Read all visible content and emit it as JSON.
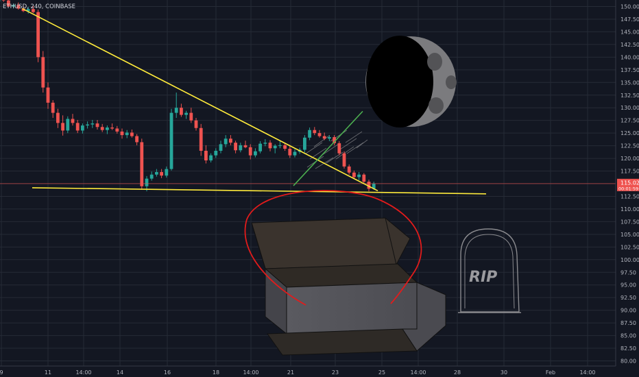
{
  "chart_data": {
    "type": "candlestick",
    "title": "ETHUSD, 240, COINBASE",
    "y_ticks": [
      150.0,
      147.5,
      145.0,
      142.5,
      140.0,
      137.5,
      135.0,
      132.5,
      130.0,
      127.5,
      125.0,
      122.5,
      120.0,
      117.5,
      115.0,
      112.5,
      110.0,
      107.5,
      105.0,
      102.5,
      100.0,
      97.5,
      95.0,
      92.5,
      90.0,
      87.5,
      85.0,
      82.5,
      80.0
    ],
    "ylim": [
      79.0,
      151.0
    ],
    "x_ticks": [
      "9",
      "11",
      "14:00",
      "14",
      "16",
      "18",
      "14:00",
      "21",
      "23",
      "25",
      "14:00",
      "28",
      "30",
      "Feb",
      "14:00"
    ],
    "last_price": "115.02",
    "countdown": "00:01:59",
    "candles": [
      [
        151.0,
        151.8,
        150.8,
        151.5
      ],
      [
        151.5,
        152.2,
        150.9,
        151.2
      ],
      [
        151.2,
        151.6,
        149.9,
        150.0
      ],
      [
        150.0,
        150.6,
        149.6,
        150.3
      ],
      [
        150.3,
        150.8,
        149.4,
        149.6
      ],
      [
        149.6,
        150.2,
        148.9,
        149.1
      ],
      [
        149.1,
        149.9,
        148.6,
        149.5
      ],
      [
        149.5,
        150.1,
        148.7,
        148.9
      ],
      [
        148.9,
        149.4,
        139.0,
        140.0
      ],
      [
        140.0,
        141.2,
        133.0,
        134.0
      ],
      [
        134.0,
        135.0,
        129.8,
        131.0
      ],
      [
        131.0,
        131.5,
        128.0,
        129.0
      ],
      [
        129.0,
        129.8,
        126.0,
        127.0
      ],
      [
        127.0,
        128.5,
        124.5,
        125.5
      ],
      [
        125.5,
        128.3,
        125.0,
        127.8
      ],
      [
        127.8,
        128.8,
        126.5,
        127.0
      ],
      [
        127.0,
        127.6,
        125.0,
        125.5
      ],
      [
        125.5,
        126.9,
        124.9,
        126.5
      ],
      [
        126.5,
        127.3,
        125.9,
        126.7
      ],
      [
        126.7,
        127.6,
        126.0,
        126.9
      ],
      [
        126.9,
        127.6,
        125.7,
        126.2
      ],
      [
        126.2,
        126.8,
        125.2,
        125.6
      ],
      [
        125.6,
        126.5,
        124.8,
        126.1
      ],
      [
        126.1,
        126.9,
        125.6,
        125.9
      ],
      [
        125.9,
        126.4,
        124.9,
        125.3
      ],
      [
        125.3,
        125.9,
        123.9,
        124.6
      ],
      [
        124.6,
        125.6,
        124.0,
        125.1
      ],
      [
        125.1,
        125.7,
        124.1,
        124.4
      ],
      [
        124.4,
        124.8,
        122.6,
        123.2
      ],
      [
        123.2,
        123.9,
        113.8,
        114.5
      ],
      [
        114.5,
        116.5,
        113.5,
        116.0
      ],
      [
        116.0,
        117.4,
        115.6,
        116.8
      ],
      [
        116.8,
        117.9,
        116.4,
        117.3
      ],
      [
        117.3,
        117.9,
        116.1,
        116.6
      ],
      [
        116.6,
        118.4,
        116.2,
        117.9
      ],
      [
        117.9,
        129.8,
        117.6,
        129.0
      ],
      [
        129.0,
        133.0,
        128.0,
        130.0
      ],
      [
        130.0,
        130.8,
        128.2,
        128.6
      ],
      [
        128.6,
        129.4,
        127.8,
        129.0
      ],
      [
        129.0,
        130.0,
        127.0,
        127.5
      ],
      [
        127.5,
        128.0,
        125.5,
        126.0
      ],
      [
        126.0,
        126.8,
        120.5,
        121.5
      ],
      [
        121.5,
        122.6,
        119.0,
        119.6
      ],
      [
        119.6,
        121.0,
        119.2,
        120.6
      ],
      [
        120.6,
        122.0,
        120.1,
        121.5
      ],
      [
        121.5,
        123.5,
        121.0,
        122.8
      ],
      [
        122.8,
        124.6,
        122.2,
        123.9
      ],
      [
        123.9,
        124.6,
        122.6,
        123.1
      ],
      [
        123.1,
        123.5,
        121.0,
        121.6
      ],
      [
        121.6,
        123.1,
        121.2,
        122.6
      ],
      [
        122.6,
        123.5,
        122.0,
        122.2
      ],
      [
        122.2,
        122.8,
        119.8,
        120.6
      ],
      [
        120.6,
        122.0,
        120.2,
        121.4
      ],
      [
        121.4,
        123.4,
        121.0,
        122.9
      ],
      [
        122.9,
        123.8,
        122.4,
        123.1
      ],
      [
        123.1,
        123.6,
        121.4,
        122.0
      ],
      [
        122.0,
        122.8,
        121.0,
        122.5
      ],
      [
        122.5,
        123.4,
        122.0,
        122.6
      ],
      [
        122.6,
        123.1,
        121.5,
        121.9
      ],
      [
        121.9,
        122.6,
        120.1,
        120.6
      ],
      [
        120.6,
        121.8,
        120.2,
        121.3
      ],
      [
        121.3,
        122.1,
        120.9,
        121.7
      ],
      [
        121.7,
        124.6,
        121.2,
        124.1
      ],
      [
        124.1,
        126.1,
        123.6,
        125.6
      ],
      [
        125.6,
        126.2,
        124.6,
        125.0
      ],
      [
        125.0,
        125.6,
        124.1,
        124.4
      ],
      [
        124.4,
        125.1,
        123.6,
        123.9
      ],
      [
        123.9,
        124.6,
        123.4,
        124.2
      ],
      [
        124.2,
        124.6,
        122.6,
        123.0
      ],
      [
        123.0,
        123.4,
        120.6,
        121.0
      ],
      [
        121.0,
        121.4,
        118.0,
        118.4
      ],
      [
        118.4,
        118.8,
        116.8,
        117.2
      ],
      [
        117.2,
        117.6,
        115.9,
        116.3
      ],
      [
        116.3,
        117.3,
        115.7,
        116.8
      ],
      [
        116.8,
        117.1,
        115.0,
        115.4
      ],
      [
        115.4,
        115.8,
        113.5,
        114.0
      ],
      [
        114.0,
        115.4,
        113.8,
        115.0
      ]
    ],
    "annotations": {
      "descending_trendline": [
        [
          2,
          149.6
        ],
        [
          76,
          113.6
        ]
      ],
      "horizontal_support": [
        [
          0,
          114.2
        ],
        [
          94,
          113.0
        ]
      ],
      "projection_line": [
        [
          58,
          114.6
        ],
        [
          71,
          129.3
        ]
      ],
      "circle_sketch": "red",
      "coffin_drawing": "grey",
      "moon_drawing": "dark",
      "tombstone_label": "RIP"
    },
    "colors": {
      "background": "#131722",
      "grid": "#262b36",
      "up": "#26a69a",
      "down": "#ef5350",
      "trend": "#ffeb3b",
      "projection": "#4caf50",
      "price_line": "#ef5350",
      "circle": "#e31b1b"
    }
  }
}
